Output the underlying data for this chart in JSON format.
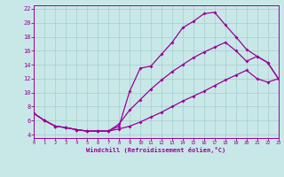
{
  "bg_color": "#c8e8e8",
  "line_color": "#990099",
  "grid_color": "#a8cccc",
  "xlim": [
    0,
    23
  ],
  "ylim": [
    3.5,
    22.5
  ],
  "xtick_vals": [
    0,
    1,
    2,
    3,
    4,
    5,
    6,
    7,
    8,
    9,
    10,
    11,
    12,
    13,
    14,
    15,
    16,
    17,
    18,
    19,
    20,
    21,
    22,
    23
  ],
  "ytick_vals": [
    4,
    6,
    8,
    10,
    12,
    14,
    16,
    18,
    20,
    22
  ],
  "xlabel": "Windchill (Refroidissement éolien,°C)",
  "curve1_x": [
    0,
    1,
    2,
    3,
    4,
    5,
    6,
    7,
    8,
    9,
    10,
    11,
    12,
    13,
    14,
    15,
    16,
    17,
    18,
    19,
    20,
    21,
    22,
    23
  ],
  "curve1_y": [
    7.0,
    6.0,
    5.2,
    5.0,
    4.7,
    4.5,
    4.5,
    4.5,
    5.2,
    10.2,
    13.5,
    13.8,
    15.5,
    17.2,
    19.3,
    20.2,
    21.3,
    21.5,
    19.7,
    18.0,
    16.2,
    15.2,
    14.3,
    12.0
  ],
  "curve2_x": [
    0,
    1,
    2,
    3,
    4,
    5,
    6,
    7,
    8,
    9,
    10,
    11,
    12,
    13,
    14,
    15,
    16,
    17,
    18,
    19,
    20,
    21,
    22,
    23
  ],
  "curve2_y": [
    7.0,
    6.0,
    5.2,
    5.0,
    4.7,
    4.5,
    4.5,
    4.5,
    4.8,
    5.2,
    5.8,
    6.5,
    7.2,
    8.0,
    8.8,
    9.5,
    10.2,
    11.0,
    11.8,
    12.5,
    13.2,
    12.0,
    11.5,
    12.0
  ],
  "curve3_x": [
    0,
    1,
    2,
    3,
    4,
    5,
    6,
    7,
    8,
    9,
    10,
    11,
    12,
    13,
    14,
    15,
    16,
    17,
    18,
    19,
    20,
    21,
    22,
    23
  ],
  "curve3_y": [
    7.0,
    6.0,
    5.2,
    5.0,
    4.7,
    4.5,
    4.5,
    4.5,
    5.5,
    7.5,
    9.0,
    10.5,
    11.8,
    13.0,
    14.0,
    15.0,
    15.8,
    16.5,
    17.2,
    16.0,
    14.5,
    15.2,
    14.3,
    12.0
  ]
}
